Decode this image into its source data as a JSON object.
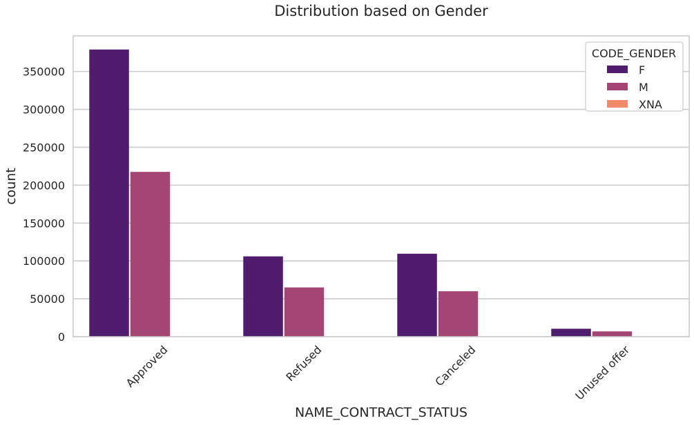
{
  "chart_data": {
    "type": "bar",
    "title": "Distribution based on Gender",
    "xlabel": "NAME_CONTRACT_STATUS",
    "ylabel": "count",
    "categories": [
      "Approved",
      "Refused",
      "Canceled",
      "Unused offer"
    ],
    "yticks": [
      0,
      50000,
      100000,
      150000,
      200000,
      250000,
      300000,
      350000
    ],
    "ylim": [
      0,
      397000
    ],
    "grid": true,
    "legend_title": "CODE_GENDER",
    "legend_position": "top-right",
    "series": [
      {
        "name": "F",
        "color": "#4f1c6e",
        "values": [
          379000,
          106000,
          109500,
          10500
        ]
      },
      {
        "name": "M",
        "color": "#a54574",
        "values": [
          217500,
          65000,
          60000,
          7000
        ]
      },
      {
        "name": "XNA",
        "color": "#f18a69",
        "values": [
          0,
          0,
          0,
          0
        ]
      }
    ]
  }
}
